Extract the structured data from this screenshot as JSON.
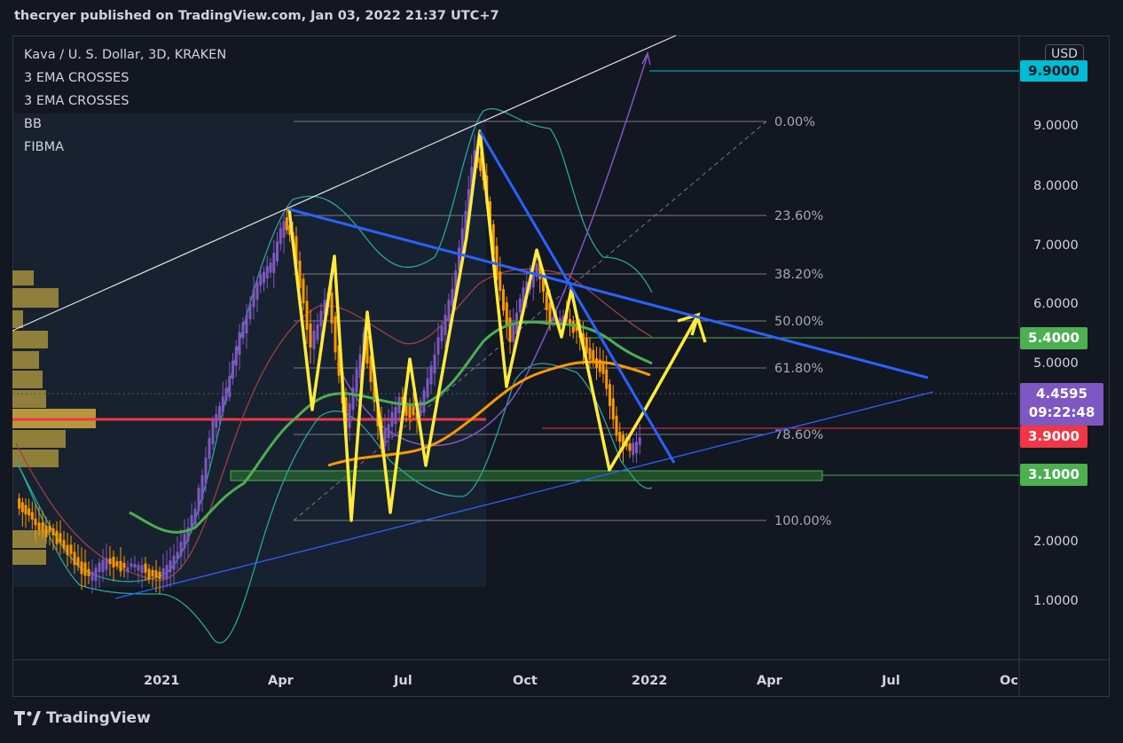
{
  "header": {
    "title": "thecryer published on TradingView.com, Jan 03, 2022 21:37 UTC+7"
  },
  "overlay": {
    "symbol": "Kava / U. S. Dollar, 3D, KRAKEN",
    "indicators": [
      "3 EMA CROSSES",
      "3 EMA CROSSES",
      "BB",
      "FIBMA"
    ]
  },
  "currency_badge": "USD",
  "price_tags": {
    "cyan": "9.9000",
    "green_upper": "5.4000",
    "current_price": "4.4595",
    "countdown": "09:22:48",
    "red": "3.9000",
    "green_lower": "3.1000"
  },
  "footer": {
    "brand": "TradingView"
  },
  "colors": {
    "background": "#131722",
    "candle_up": "#7e57c2",
    "candle_down": "#ff9800",
    "pattern_yellow": "#ffeb3b",
    "trendline_blue": "#2962ff",
    "ema_green": "#4caf50",
    "ema_orange": "#ff9800",
    "bb_teal": "#26a69a",
    "support_red": "#f23645"
  },
  "chart_data": {
    "type": "candlestick",
    "symbol": "Kava / U. S. Dollar",
    "interval": "3D",
    "exchange": "KRAKEN",
    "y_scale": "log",
    "y_ticks": [
      "9.0000",
      "8.0000",
      "7.0000",
      "6.0000",
      "5.0000",
      "2.0000",
      "1.0000"
    ],
    "x_ticks": [
      "2021",
      "Apr",
      "Jul",
      "Oct",
      "2022",
      "Apr",
      "Jul",
      "Oc"
    ],
    "fibonacci_levels": [
      "0.00%",
      "23.60%",
      "38.20%",
      "50.00%",
      "61.80%",
      "78.60%",
      "100.00%"
    ],
    "horizontal_levels": [
      9.9,
      5.4,
      3.9,
      3.1
    ],
    "last_price": 4.4595,
    "zigzag_pattern_points": [
      7.6,
      3.9,
      7.0,
      2.4,
      6.0,
      2.6,
      5.4,
      3.0,
      5.2,
      3.2,
      9.0,
      3.9,
      7.0,
      3.9,
      6.5,
      3.2,
      4.5,
      5.7,
      5.4
    ]
  }
}
